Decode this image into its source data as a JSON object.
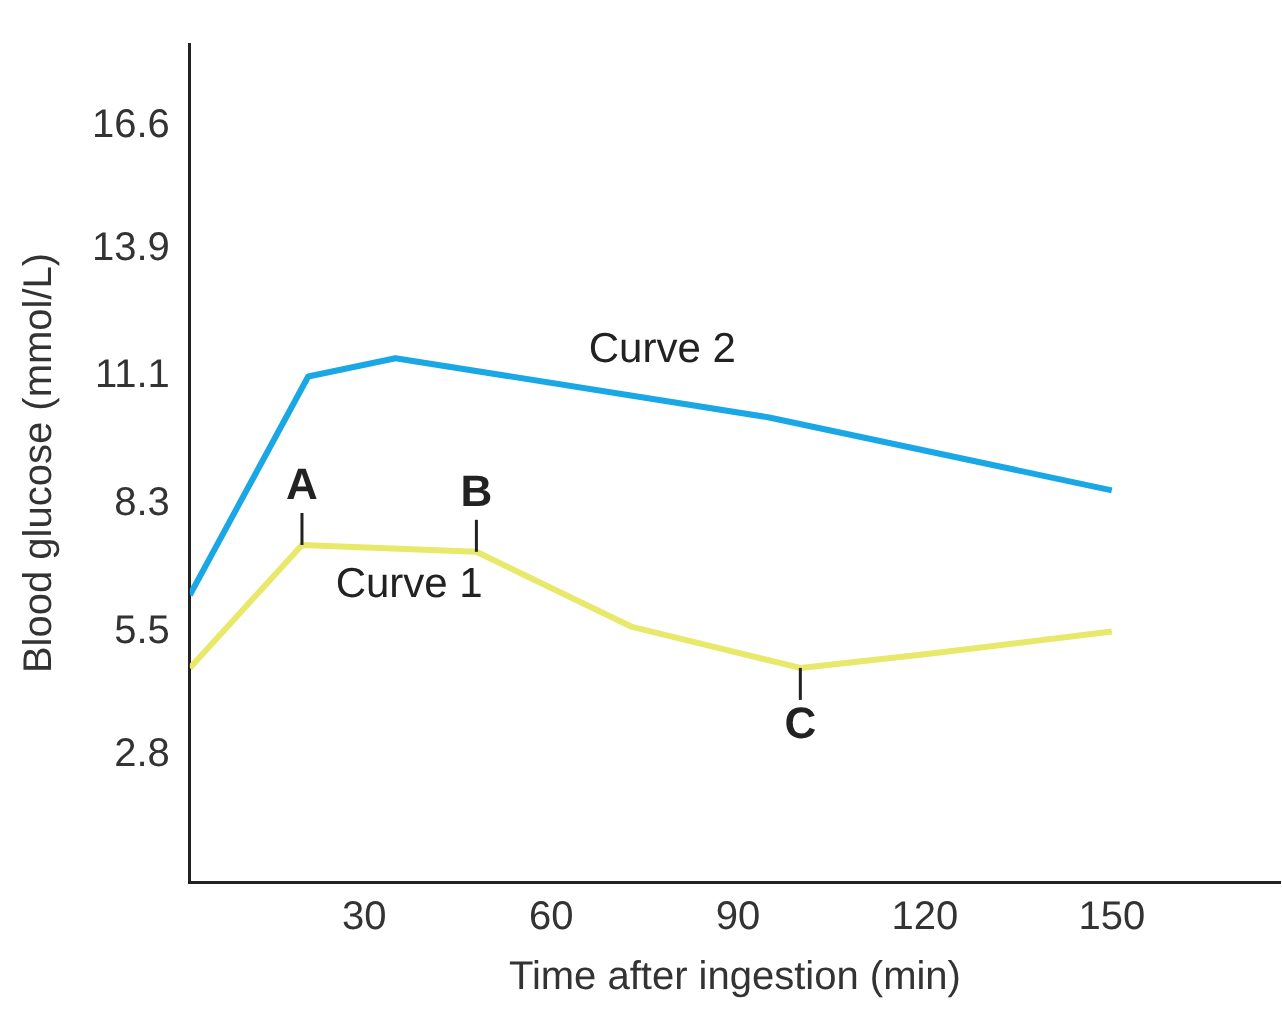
{
  "chart_data": {
    "type": "line",
    "xlabel": "Time after ingestion (min)",
    "ylabel": "Blood glucose (mmol/L)",
    "xlim": [
      2,
      177
    ],
    "xticks": [
      30,
      60,
      90,
      120,
      150
    ],
    "ylim": [
      0,
      18.4
    ],
    "yticks": [
      2.8,
      5.5,
      8.3,
      11.1,
      13.9,
      16.6
    ],
    "grid": false,
    "legend": false,
    "marker": "none",
    "line_style": "solid",
    "series": [
      {
        "name": "Curve 2",
        "color": "#1aa7e6",
        "x": [
          2,
          21,
          35,
          95,
          150
        ],
        "values": [
          6.3,
          11.1,
          11.5,
          10.2,
          8.6
        ]
      },
      {
        "name": "Curve 1",
        "color": "#e8e86a",
        "x": [
          2,
          20,
          48,
          73,
          100,
          120,
          150
        ],
        "values": [
          4.7,
          7.4,
          7.25,
          5.6,
          4.7,
          5.0,
          5.5
        ]
      }
    ],
    "annotations": [
      {
        "text": "A",
        "x": 20,
        "y": 7.4
      },
      {
        "text": "B",
        "x": 48,
        "y": 7.25
      },
      {
        "text": "C",
        "x": 100,
        "y": 4.7
      }
    ]
  }
}
